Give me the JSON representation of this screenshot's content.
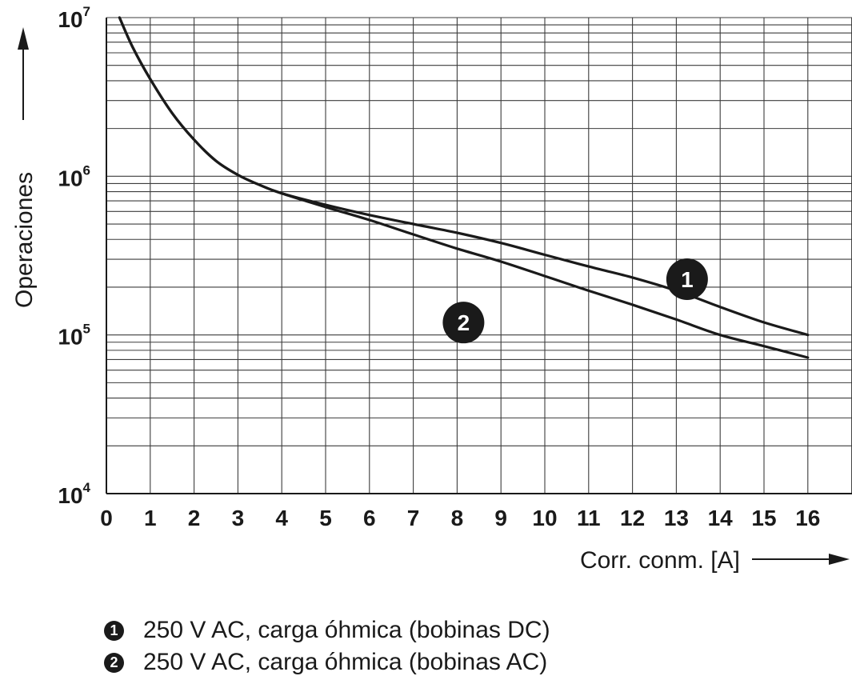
{
  "chart_data": {
    "type": "line",
    "title": "",
    "xlabel": "Corr. conm. [A]",
    "ylabel": "Operaciones",
    "x_scale": "linear",
    "y_scale": "log",
    "xlim": [
      0,
      16
    ],
    "ylim": [
      10000,
      10000000
    ],
    "x_ticks": [
      "0",
      "1",
      "2",
      "3",
      "4",
      "5",
      "6",
      "7",
      "8",
      "9",
      "10",
      "11",
      "12",
      "13",
      "14",
      "15",
      "16"
    ],
    "y_ticks": [
      {
        "value": 10000,
        "base": "10",
        "exp": "4"
      },
      {
        "value": 100000,
        "base": "10",
        "exp": "5"
      },
      {
        "value": 1000000,
        "base": "10",
        "exp": "6"
      },
      {
        "value": 10000000,
        "base": "10",
        "exp": "7"
      }
    ],
    "grid": true,
    "series": [
      {
        "marker": "1",
        "name": "250 V AC, carga óhmica (bobinas DC)",
        "x": [
          0.3,
          0.6,
          1,
          1.5,
          2,
          2.5,
          3,
          3.5,
          4,
          5,
          6,
          7,
          8,
          9,
          10,
          11,
          12,
          13,
          14,
          15,
          16
        ],
        "y": [
          10000000,
          6500000,
          4100000,
          2500000,
          1700000,
          1250000,
          1020000,
          880000,
          780000,
          660000,
          570000,
          500000,
          440000,
          380000,
          320000,
          270000,
          230000,
          190000,
          150000,
          120000,
          100000
        ]
      },
      {
        "marker": "2",
        "name": "250 V AC, carga óhmica (bobinas AC)",
        "x": [
          0.3,
          0.6,
          1,
          1.5,
          2,
          2.5,
          3,
          3.5,
          4,
          5,
          6,
          7,
          8,
          9,
          10,
          11,
          12,
          13,
          14,
          15,
          16
        ],
        "y": [
          10000000,
          6500000,
          4100000,
          2500000,
          1700000,
          1250000,
          1020000,
          880000,
          780000,
          640000,
          530000,
          430000,
          350000,
          290000,
          235000,
          190000,
          155000,
          125000,
          100000,
          85000,
          72000
        ]
      }
    ],
    "annotations": [
      {
        "text": "1",
        "x": 13.1,
        "y": 300000
      },
      {
        "text": "2",
        "x": 8.0,
        "y": 160000
      }
    ],
    "legend": {
      "position": "bottom-left",
      "items": [
        {
          "badge": "1",
          "label": "250 V AC, carga óhmica (bobinas DC)"
        },
        {
          "badge": "2",
          "label": "250 V AC, carga óhmica (bobinas AC)"
        }
      ]
    },
    "colors": {
      "line": "#1a1a1a",
      "grid": "#3c3c3c",
      "background": "#ffffff"
    }
  }
}
